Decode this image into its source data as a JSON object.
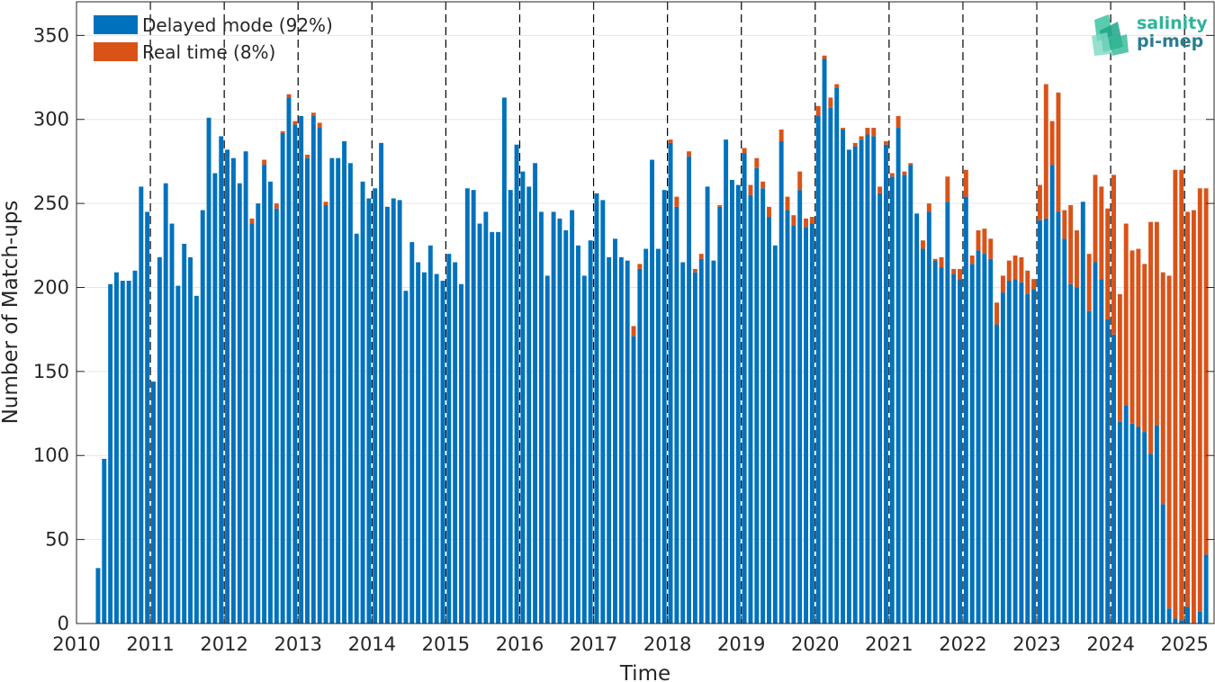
{
  "chart_data": {
    "type": "bar",
    "stacked": true,
    "xlabel": "Time",
    "ylabel": "Number of Match-ups",
    "xlim": [
      2010,
      2025.4
    ],
    "ylim": [
      0,
      370
    ],
    "x_ticks": [
      "2010",
      "2011",
      "2012",
      "2013",
      "2014",
      "2015",
      "2016",
      "2017",
      "2018",
      "2019",
      "2020",
      "2021",
      "2022",
      "2023",
      "2024",
      "2025"
    ],
    "y_ticks": [
      0,
      50,
      100,
      150,
      200,
      250,
      300,
      350
    ],
    "year_divider_lines": [
      2011,
      2012,
      2013,
      2014,
      2015,
      2016,
      2017,
      2018,
      2019,
      2020,
      2021,
      2022,
      2023,
      2024,
      2025
    ],
    "grid": "horizontal",
    "legend_position": "top-left",
    "start_year": 2010,
    "start_month": 4,
    "series": [
      {
        "name": "Delayed mode (92%)",
        "color": "#0072BD",
        "values": [
          33,
          98,
          202,
          209,
          204,
          204,
          210,
          260,
          245,
          144,
          218,
          262,
          238,
          201,
          226,
          218,
          195,
          246,
          301,
          268,
          290,
          282,
          277,
          262,
          281,
          238,
          250,
          273,
          263,
          247,
          292,
          313,
          297,
          302,
          277,
          302,
          295,
          249,
          277,
          277,
          287,
          274,
          232,
          263,
          253,
          259,
          286,
          248,
          253,
          252,
          198,
          227,
          215,
          209,
          225,
          208,
          204,
          220,
          215,
          202,
          259,
          258,
          238,
          245,
          233,
          233,
          313,
          258,
          285,
          269,
          260,
          274,
          245,
          207,
          245,
          241,
          234,
          246,
          225,
          207,
          228,
          256,
          252,
          218,
          229,
          218,
          216,
          171,
          211,
          223,
          276,
          223,
          258,
          286,
          248,
          215,
          278,
          209,
          217,
          260,
          216,
          248,
          288,
          264,
          261,
          280,
          255,
          271,
          259,
          242,
          225,
          287,
          246,
          237,
          258,
          236,
          238,
          302,
          336,
          307,
          319,
          294,
          282,
          284,
          288,
          291,
          290,
          256,
          285,
          266,
          295,
          267,
          273,
          244,
          223,
          245,
          216,
          212,
          251,
          208,
          205,
          254,
          214,
          222,
          220,
          217,
          178,
          197,
          204,
          205,
          203,
          196,
          199,
          240,
          241,
          273,
          245,
          229,
          202,
          200,
          251,
          186,
          215,
          205,
          181,
          172,
          120,
          130,
          119,
          117,
          114,
          101,
          118,
          71,
          9,
          3,
          2,
          10,
          0,
          7,
          41
        ],
        "text_name": "legend_delayed"
      },
      {
        "name": "Real time (8%)",
        "color": "#D95319",
        "values": [
          0,
          0,
          0,
          0,
          0,
          0,
          0,
          0,
          0,
          0,
          0,
          0,
          0,
          0,
          0,
          0,
          0,
          0,
          0,
          0,
          0,
          0,
          0,
          0,
          0,
          3,
          0,
          3,
          0,
          3,
          1,
          2,
          2,
          0,
          2,
          2,
          3,
          2,
          0,
          0,
          0,
          0,
          0,
          0,
          0,
          0,
          0,
          0,
          0,
          0,
          0,
          0,
          0,
          0,
          0,
          0,
          0,
          0,
          0,
          0,
          0,
          0,
          0,
          0,
          0,
          0,
          0,
          0,
          0,
          0,
          0,
          0,
          0,
          0,
          0,
          0,
          0,
          0,
          0,
          0,
          0,
          0,
          0,
          0,
          0,
          0,
          0,
          6,
          3,
          0,
          0,
          0,
          0,
          2,
          6,
          0,
          3,
          2,
          3,
          0,
          0,
          1,
          0,
          0,
          0,
          3,
          6,
          6,
          4,
          6,
          0,
          7,
          8,
          6,
          11,
          5,
          4,
          6,
          2,
          6,
          2,
          1,
          0,
          2,
          2,
          4,
          5,
          4,
          2,
          2,
          7,
          2,
          1,
          0,
          5,
          5,
          1,
          6,
          15,
          3,
          6,
          16,
          5,
          12,
          15,
          12,
          13,
          10,
          12,
          14,
          15,
          14,
          6,
          21,
          80,
          26,
          71,
          17,
          47,
          34,
          0,
          34,
          52,
          55,
          66,
          95,
          76,
          108,
          103,
          106,
          100,
          138,
          121,
          138,
          198,
          267,
          268,
          235,
          246,
          252,
          218
        ]
      }
    ]
  },
  "legend": {
    "delayed_label": "Delayed mode (92%)",
    "realtime_label": "Real time (8%)"
  },
  "logo": {
    "line1": "salinity",
    "line2": "pi-mep"
  }
}
